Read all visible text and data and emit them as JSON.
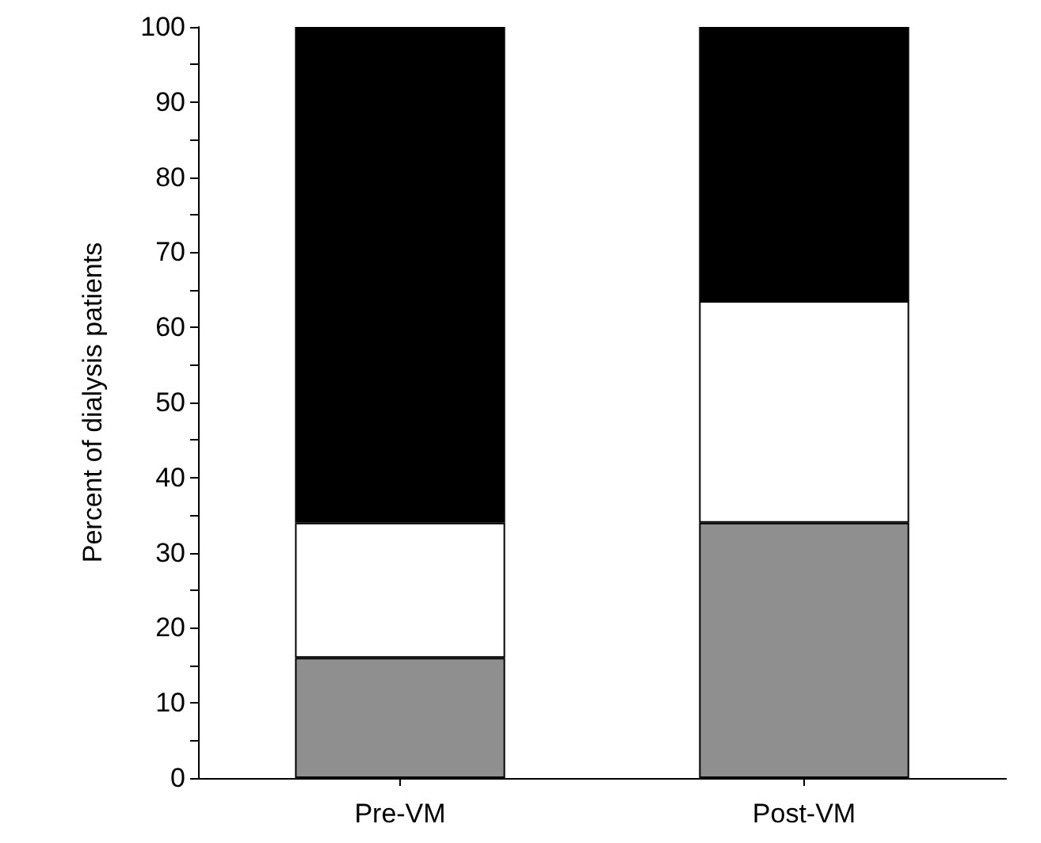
{
  "chart_data": {
    "type": "bar",
    "stacked": true,
    "ylabel": "Percent of dialysis patients",
    "categories": [
      "Pre-VM",
      "Post-VM"
    ],
    "series": [
      {
        "color": "#8f8f8f",
        "values": [
          16,
          34
        ]
      },
      {
        "color": "#ffffff",
        "values": [
          18,
          29.5
        ]
      },
      {
        "color": "#000000",
        "values": [
          66,
          36.5
        ]
      }
    ],
    "ylim": [
      0,
      100
    ],
    "yticks": [
      0,
      {
        "value": 5,
        "label": null
      },
      10,
      {
        "value": 15,
        "label": null
      },
      20,
      {
        "value": 25,
        "label": null
      },
      30,
      {
        "value": 35,
        "label": null
      },
      40,
      {
        "value": 45,
        "label": null
      },
      50,
      {
        "value": 55,
        "label": null
      },
      60,
      {
        "value": 65,
        "label": null
      },
      70,
      {
        "value": 75,
        "label": null
      },
      80,
      {
        "value": 85,
        "label": null
      },
      90,
      {
        "value": 95,
        "label": null
      },
      100
    ],
    "grid": false
  }
}
